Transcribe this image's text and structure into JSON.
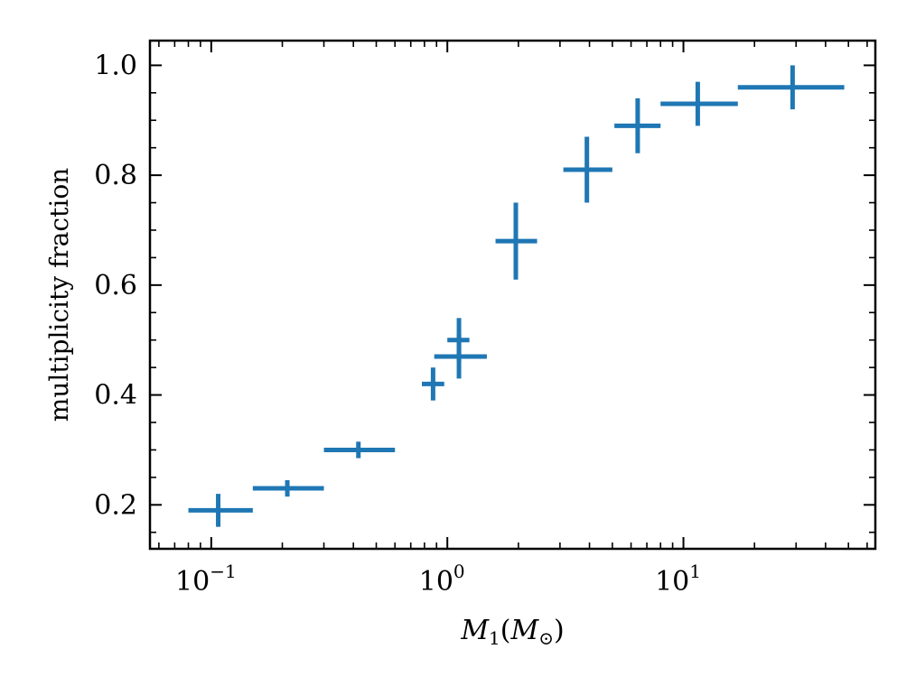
{
  "chart_data": {
    "type": "scatter",
    "xscale": "log",
    "xlim": [
      0.055,
      65
    ],
    "ylim": [
      0.12,
      1.045
    ],
    "xlabel": {
      "symbol": "M",
      "sub1": "1",
      "open": "(",
      "symbol2": "M",
      "sub2": "⊙",
      "close": ")"
    },
    "ylabel": "multiplicity fraction",
    "xticks": [
      {
        "value": 0.1,
        "base": "10",
        "exp": "−1"
      },
      {
        "value": 1,
        "base": "10",
        "exp": "0"
      },
      {
        "value": 10,
        "base": "10",
        "exp": "1"
      }
    ],
    "yticks": [
      {
        "value": 0.2,
        "label": "0.2"
      },
      {
        "value": 0.4,
        "label": "0.4"
      },
      {
        "value": 0.6,
        "label": "0.6"
      },
      {
        "value": 0.8,
        "label": "0.8"
      },
      {
        "value": 1.0,
        "label": "1.0"
      }
    ],
    "series": [
      {
        "color": "#1f77b4",
        "points": [
          {
            "x": 0.107,
            "y": 0.19,
            "xmin": 0.08,
            "xmax": 0.15,
            "ymin": 0.16,
            "ymax": 0.22
          },
          {
            "x": 0.21,
            "y": 0.23,
            "xmin": 0.15,
            "xmax": 0.3,
            "ymin": 0.215,
            "ymax": 0.245
          },
          {
            "x": 0.42,
            "y": 0.3,
            "xmin": 0.3,
            "xmax": 0.6,
            "ymin": 0.285,
            "ymax": 0.315
          },
          {
            "x": 0.87,
            "y": 0.42,
            "xmin": 0.78,
            "xmax": 0.97,
            "ymin": 0.39,
            "ymax": 0.45
          },
          {
            "x": 1.12,
            "y": 0.47,
            "xmin": 0.88,
            "xmax": 1.47,
            "ymin": 0.43,
            "ymax": 0.51
          },
          {
            "x": 1.12,
            "y": 0.5,
            "xmin": 1.0,
            "xmax": 1.24,
            "ymin": 0.46,
            "ymax": 0.54
          },
          {
            "x": 1.95,
            "y": 0.68,
            "xmin": 1.6,
            "xmax": 2.4,
            "ymin": 0.61,
            "ymax": 0.75
          },
          {
            "x": 3.9,
            "y": 0.81,
            "xmin": 3.1,
            "xmax": 5.0,
            "ymin": 0.75,
            "ymax": 0.87
          },
          {
            "x": 6.4,
            "y": 0.89,
            "xmin": 5.1,
            "xmax": 8.0,
            "ymin": 0.84,
            "ymax": 0.94
          },
          {
            "x": 11.5,
            "y": 0.93,
            "xmin": 8.0,
            "xmax": 17.0,
            "ymin": 0.89,
            "ymax": 0.97
          },
          {
            "x": 29.0,
            "y": 0.96,
            "xmin": 17.0,
            "xmax": 48.0,
            "ymin": 0.92,
            "ymax": 1.0
          }
        ]
      }
    ]
  }
}
